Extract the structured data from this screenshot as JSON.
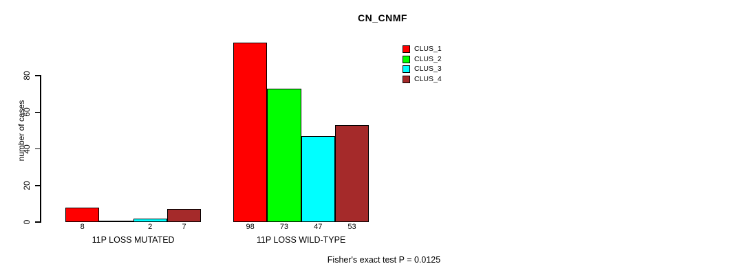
{
  "chart_data": {
    "type": "bar",
    "title": "CN_CNMF",
    "ylabel": "number of cases",
    "xlabel": "",
    "ylim": [
      0,
      80
    ],
    "yticks": [
      0,
      20,
      40,
      60,
      80
    ],
    "grid": false,
    "legend_position": "top-right",
    "categories": [
      "11P LOSS MUTATED",
      "11P LOSS WILD-TYPE"
    ],
    "series": [
      {
        "name": "CLUS_1",
        "color": "#ff0000",
        "values": [
          8,
          98
        ]
      },
      {
        "name": "CLUS_2",
        "color": "#00ff00",
        "values": [
          0,
          73
        ]
      },
      {
        "name": "CLUS_3",
        "color": "#00ffff",
        "values": [
          2,
          47
        ]
      },
      {
        "name": "CLUS_4",
        "color": "#a52a2a",
        "values": [
          7,
          53
        ]
      }
    ],
    "bar_count_labels": [
      [
        "8",
        "",
        "2",
        "7"
      ],
      [
        "98",
        "73",
        "47",
        "53"
      ]
    ],
    "annotation": "Fisher's exact test P = 0.0125"
  }
}
